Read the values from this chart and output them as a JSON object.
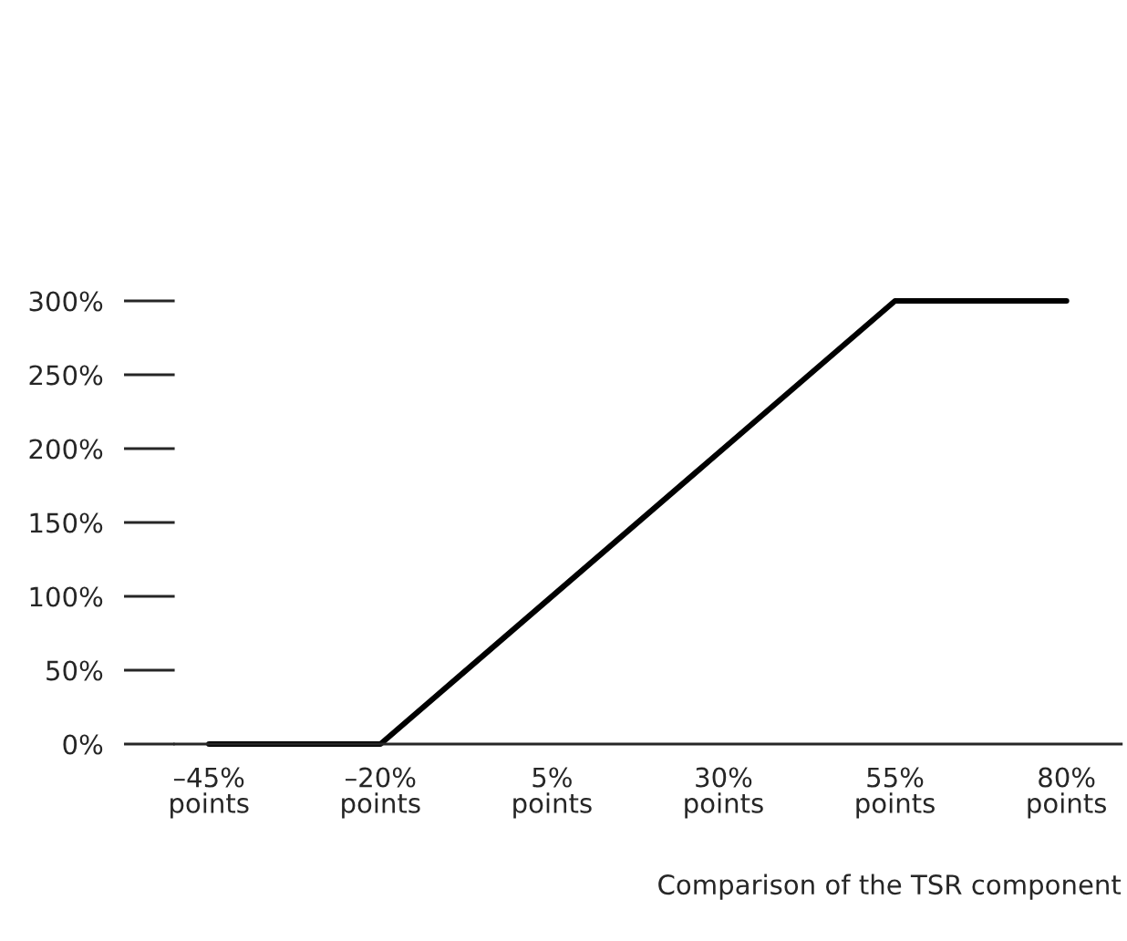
{
  "chart_data": {
    "type": "line",
    "x": [
      -45,
      -20,
      55,
      80
    ],
    "series": [
      {
        "color": "#000000",
        "values": [
          0,
          0,
          300,
          300
        ]
      }
    ],
    "xlabel": "Comparison of the TSR component",
    "xlim": [
      -50,
      88
    ],
    "xticks": [
      {
        "value": -45,
        "label": "–45%\npoints"
      },
      {
        "value": -20,
        "label": "–20%\npoints"
      },
      {
        "value": 5,
        "label": "5%\npoints"
      },
      {
        "value": 30,
        "label": "30%\npoints"
      },
      {
        "value": 55,
        "label": "55%\npoints"
      },
      {
        "value": 80,
        "label": "80%\npoints"
      }
    ],
    "ylim": [
      0,
      300
    ],
    "yticks": [
      {
        "value": 0,
        "label": "0%"
      },
      {
        "value": 50,
        "label": "50%"
      },
      {
        "value": 100,
        "label": "100%"
      },
      {
        "value": 150,
        "label": "150%"
      },
      {
        "value": 200,
        "label": "200%"
      },
      {
        "value": 250,
        "label": "250%"
      },
      {
        "value": 300,
        "label": "300%"
      }
    ],
    "grid": false,
    "marker": "none",
    "line_style": "solid"
  }
}
